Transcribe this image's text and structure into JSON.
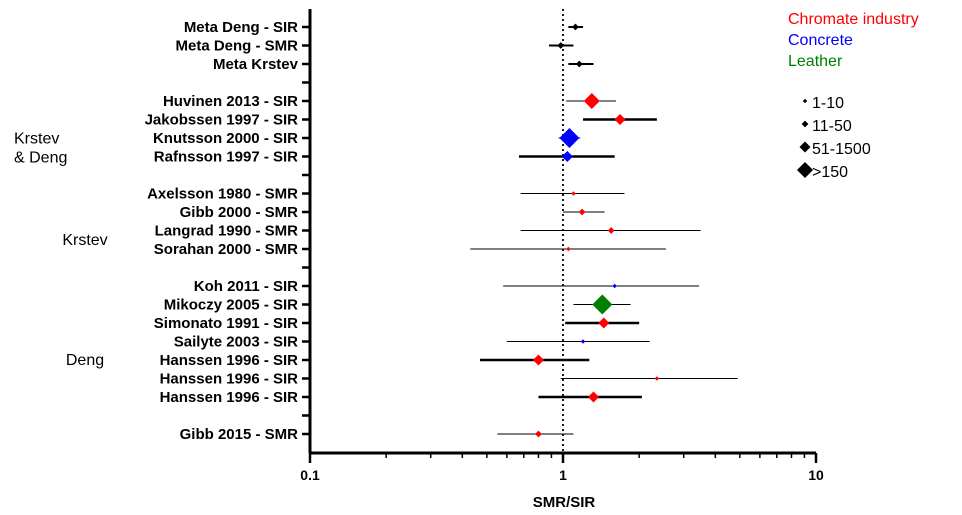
{
  "chart_data": {
    "type": "forest",
    "xlabel": "SMR/SIR",
    "xscale": "log",
    "xlim": [
      0.1,
      10
    ],
    "xticks": [
      {
        "value": 0.1,
        "label": "0.1"
      },
      {
        "value": 1,
        "label": "1"
      },
      {
        "value": 10,
        "label": "10"
      }
    ],
    "reference_line": 1,
    "industry_colors": {
      "Chromate industry": "#ff0000",
      "Concrete": "#0000ff",
      "Leather": "#008000",
      "Meta": "#000000"
    },
    "legend": [
      {
        "label": "Chromate industry",
        "color": "#ff0000"
      },
      {
        "label": "Concrete",
        "color": "#0000ff"
      },
      {
        "label": "Leather",
        "color": "#008000"
      }
    ],
    "size_legend": [
      {
        "label": "1-10",
        "size_class": 1
      },
      {
        "label": "11-50",
        "size_class": 2
      },
      {
        "label": "51-1500",
        "size_class": 3
      },
      {
        "label": ">150",
        "size_class": 4
      }
    ],
    "groups": [
      {
        "label": "Krstev",
        "label2": "& Deng",
        "rows": [
          5,
          8
        ]
      },
      {
        "label": "Krstev",
        "label2": "",
        "rows": [
          10,
          13
        ]
      },
      {
        "label": "Deng",
        "label2": "",
        "rows": [
          15,
          21
        ]
      }
    ],
    "total_rows": 24,
    "rows": [
      {
        "slot": 0,
        "label": "Meta Deng - SIR",
        "estimate": 1.12,
        "lower": 1.05,
        "upper": 1.2,
        "industry": "Meta",
        "size_class": 2
      },
      {
        "slot": 1,
        "label": "Meta Deng - SMR",
        "estimate": 0.98,
        "lower": 0.88,
        "upper": 1.1,
        "industry": "Meta",
        "size_class": 2
      },
      {
        "slot": 2,
        "label": "Meta Krstev",
        "estimate": 1.16,
        "lower": 1.05,
        "upper": 1.32,
        "industry": "Meta",
        "size_class": 2
      },
      {
        "slot": 4,
        "label": "Huvinen 2013 - SIR",
        "estimate": 1.3,
        "lower": 1.03,
        "upper": 1.62,
        "industry": "Chromate industry",
        "size_class": 4
      },
      {
        "slot": 5,
        "label": "Jakobssen 1997 - SIR",
        "estimate": 1.68,
        "lower": 1.2,
        "upper": 2.35,
        "industry": "Chromate industry",
        "size_class": 3
      },
      {
        "slot": 6,
        "label": "Knutsson 2000 - SIR",
        "estimate": 1.06,
        "lower": 0.96,
        "upper": 1.17,
        "industry": "Concrete",
        "size_class": 5
      },
      {
        "slot": 7,
        "label": "Rafnsson 1997 - SIR",
        "estimate": 1.04,
        "lower": 0.67,
        "upper": 1.6,
        "industry": "Concrete",
        "size_class": 3
      },
      {
        "slot": 9,
        "label": "Axelsson 1980 - SMR",
        "estimate": 1.1,
        "lower": 0.68,
        "upper": 1.75,
        "industry": "Chromate industry",
        "size_class": 1
      },
      {
        "slot": 10,
        "label": "Gibb 2000 - SMR",
        "estimate": 1.19,
        "lower": 1.0,
        "upper": 1.46,
        "industry": "Chromate industry",
        "size_class": 2
      },
      {
        "slot": 11,
        "label": "Langrad 1990 - SMR",
        "estimate": 1.55,
        "lower": 0.68,
        "upper": 3.5,
        "industry": "Chromate industry",
        "size_class": 2
      },
      {
        "slot": 12,
        "label": "Sorahan 2000 - SMR",
        "estimate": 1.05,
        "lower": 0.43,
        "upper": 2.55,
        "industry": "Chromate industry",
        "size_class": 1
      },
      {
        "slot": 14,
        "label": "Koh 2011 - SIR",
        "estimate": 1.6,
        "lower": 0.58,
        "upper": 3.45,
        "industry": "Concrete",
        "size_class": 1
      },
      {
        "slot": 15,
        "label": "Mikoczy 2005 - SIR",
        "estimate": 1.43,
        "lower": 1.1,
        "upper": 1.85,
        "industry": "Leather",
        "size_class": 5
      },
      {
        "slot": 16,
        "label": "Simonato 1991 - SIR",
        "estimate": 1.45,
        "lower": 1.02,
        "upper": 2.0,
        "industry": "Chromate industry",
        "size_class": 3
      },
      {
        "slot": 17,
        "label": "Sailyte 2003 - SIR",
        "estimate": 1.2,
        "lower": 0.6,
        "upper": 2.2,
        "industry": "Concrete",
        "size_class": 1
      },
      {
        "slot": 18,
        "label": "Hanssen 1996 - SIR",
        "estimate": 0.8,
        "lower": 0.47,
        "upper": 1.27,
        "industry": "Chromate industry",
        "size_class": 3
      },
      {
        "slot": 19,
        "label": "Hanssen 1996 - SIR",
        "estimate": 2.35,
        "lower": 0.98,
        "upper": 4.9,
        "industry": "Chromate industry",
        "size_class": 1
      },
      {
        "slot": 20,
        "label": "Hanssen 1996 - SIR",
        "estimate": 1.32,
        "lower": 0.8,
        "upper": 2.05,
        "industry": "Chromate industry",
        "size_class": 3
      },
      {
        "slot": 22,
        "label": "Gibb 2015 - SMR",
        "estimate": 0.8,
        "lower": 0.55,
        "upper": 1.1,
        "industry": "Chromate industry",
        "size_class": 2
      }
    ]
  }
}
